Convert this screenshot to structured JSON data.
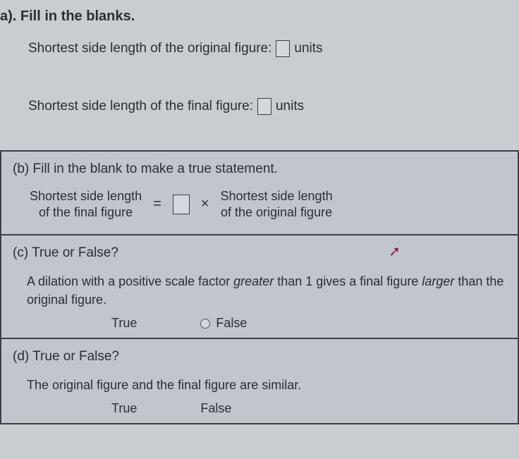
{
  "partA": {
    "label": "a). Fill in the blanks.",
    "line1_prefix": "Shortest side length of the original figure:",
    "line1_suffix": "units",
    "line2_prefix": "Shortest side length of the final figure:",
    "line2_suffix": "units"
  },
  "partB": {
    "label": "(b)  Fill in the blank to make a true statement.",
    "left_top": "Shortest side length",
    "left_bottom": "of the final figure",
    "eq": "=",
    "times": "×",
    "right_top": "Shortest side length",
    "right_bottom": "of the original figure"
  },
  "partC": {
    "label": "(c)  True or False?",
    "body_1": "A dilation with a positive scale factor ",
    "body_greater": "greater",
    "body_2": " than 1 gives a final figure ",
    "body_larger": "larger",
    "body_3": " than the original figure.",
    "true": "True",
    "false": "False"
  },
  "partD": {
    "label": "(d)  True or False?",
    "body": "The original figure and the final figure are similar.",
    "true": "True",
    "false": "False"
  },
  "colors": {
    "background": "#c8cdd1",
    "cell_bg": "#c0c6cb",
    "border": "#3a3f48",
    "text": "#2a2e35",
    "cursor": "#8a1a5a"
  }
}
